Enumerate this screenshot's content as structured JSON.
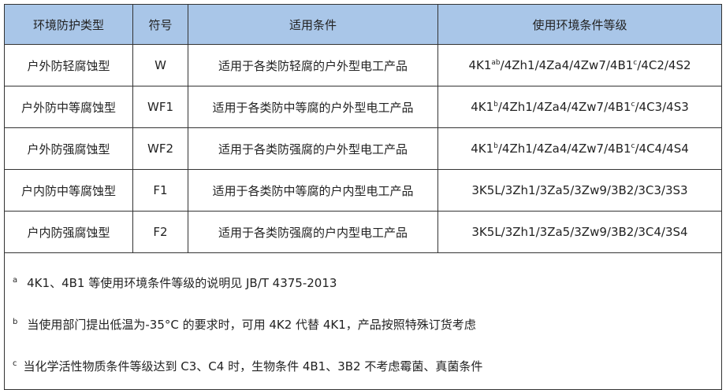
{
  "header": {
    "cols": [
      "环境防护类型",
      "符号",
      "适用条件",
      "使用环境条件等级"
    ]
  },
  "header_bg": "#a9c6e8",
  "rows": [
    {
      "type": "户外防轻腐蚀型",
      "symbol": "W",
      "condition": "适用于各类防轻腐的户外型电工产品",
      "g1": "4K1",
      "s1": "ab",
      "g2": "/4Zh1/4Za4/4Zw7/4B1",
      "s2": "c",
      "g3": "/4C2/4S2"
    },
    {
      "type": "户外防中等腐蚀型",
      "symbol": "WF1",
      "condition": "适用于各类防中等腐的户外型电工产品",
      "g1": "4K1",
      "s1": "b",
      "g2": "/4Zh1/4Za4/4Zw7/4B1",
      "s2": "c",
      "g3": "/4C3/4S3"
    },
    {
      "type": "户外防强腐蚀型",
      "symbol": "WF2",
      "condition": "适用于各类防强腐的户外型电工产品",
      "g1": "4K1",
      "s1": "b",
      "g2": "/4Zh1/4Za4/4Zw7/4B1",
      "s2": "c",
      "g3": "/4C4/4S4"
    },
    {
      "type": "户内防中等腐蚀型",
      "symbol": "F1",
      "condition": "适用于各类防中等腐的户内型电工产品",
      "g1": "3K5L/3Zh1/3Za5/3Zw9/3B2/3C3/3S3"
    },
    {
      "type": "户内防强腐蚀型",
      "symbol": "F2",
      "condition": "适用于各类防强腐的户内型电工产品",
      "g1": "3K5L/3Zh1/3Za5/3Zw9/3B2/3C4/3S4"
    }
  ],
  "notes": [
    {
      "mark": "a",
      "text": "4K1、4B1 等使用环境条件等级的说明见 JB/T 4375-2013"
    },
    {
      "mark": "b",
      "text": "当使用部门提出低温为-35°C 的要求时，可用 4K2 代替 4K1，产品按照特殊订货考虑"
    },
    {
      "mark": "c",
      "text": "当化学活性物质条件等级达到 C3、C4 时，生物条件 4B1、3B2 不考虑霉菌、真菌条件"
    }
  ]
}
